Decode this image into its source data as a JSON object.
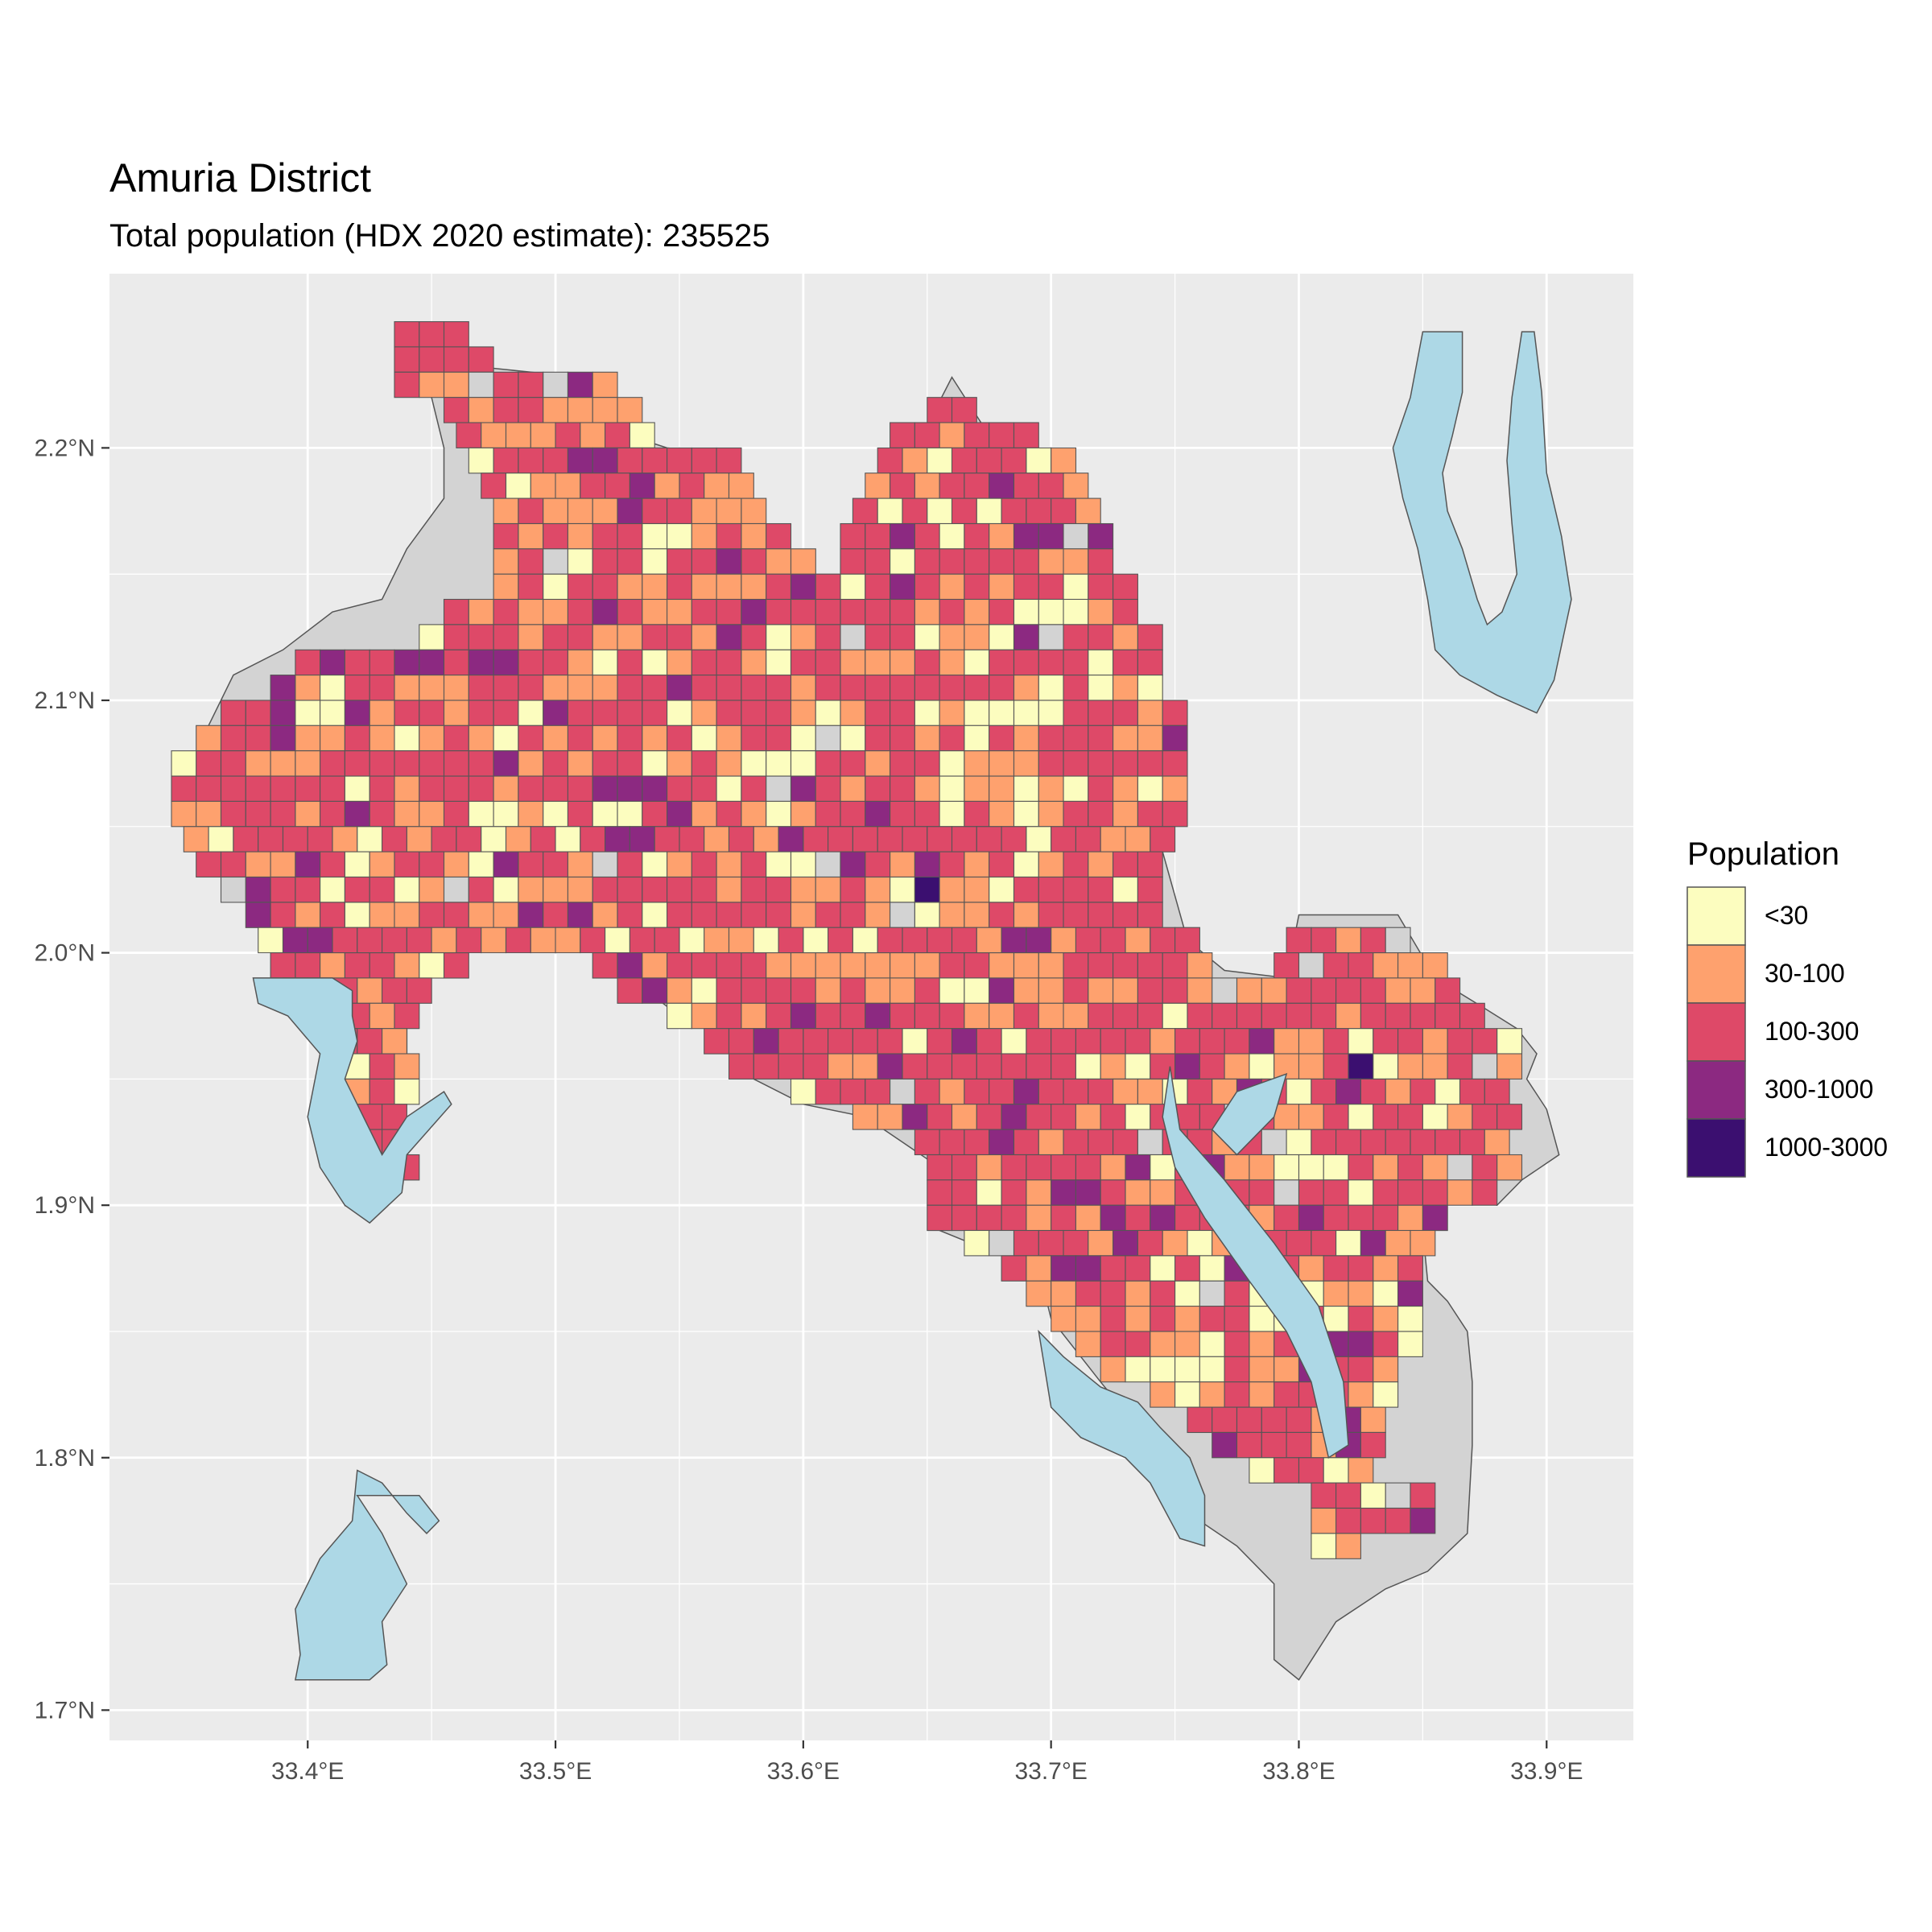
{
  "title": "Amuria District",
  "subtitle": "Total population (HDX 2020 estimate): 235525",
  "chart_data": {
    "type": "heatmap",
    "title": "Amuria District",
    "subtitle": "Total population (HDX 2020 estimate): 235525",
    "cell_size_deg": 0.01,
    "x_ticks": [
      {
        "value": 33.4,
        "label": "33.4°E"
      },
      {
        "value": 33.5,
        "label": "33.5°E"
      },
      {
        "value": 33.6,
        "label": "33.6°E"
      },
      {
        "value": 33.7,
        "label": "33.7°E"
      },
      {
        "value": 33.8,
        "label": "33.8°E"
      },
      {
        "value": 33.9,
        "label": "33.9°E"
      }
    ],
    "y_ticks": [
      {
        "value": 1.7,
        "label": "1.7°N"
      },
      {
        "value": 1.8,
        "label": "1.8°N"
      },
      {
        "value": 1.9,
        "label": "1.9°N"
      },
      {
        "value": 2.0,
        "label": "2.0°N"
      },
      {
        "value": 2.1,
        "label": "2.1°N"
      },
      {
        "value": 2.2,
        "label": "2.2°N"
      }
    ],
    "xlim": [
      33.32,
      33.935
    ],
    "ylim": [
      1.688,
      2.269
    ],
    "grid": true,
    "legend": {
      "title": "Population",
      "position": "right",
      "classes": [
        {
          "label": "<30",
          "color": "#fcfdbf"
        },
        {
          "label": "30-100",
          "color": "#fea16e"
        },
        {
          "label": "100-300",
          "color": "#de4968"
        },
        {
          "label": "300-1000",
          "color": "#8c2981"
        },
        {
          "label": "1000-3000",
          "color": "#3b0f70"
        }
      ]
    },
    "colors": {
      "panel_background": "#ebebeb",
      "grid": "#ffffff",
      "water": "#add8e6",
      "no_data_land": "#d3d3d3",
      "cell_border": "#555555"
    },
    "sample_high_density_cells": [
      {
        "lon": 33.645,
        "lat": 2.032,
        "class": "1000-3000"
      },
      {
        "lon": 33.818,
        "lat": 1.955,
        "class": "1000-3000"
      }
    ]
  }
}
